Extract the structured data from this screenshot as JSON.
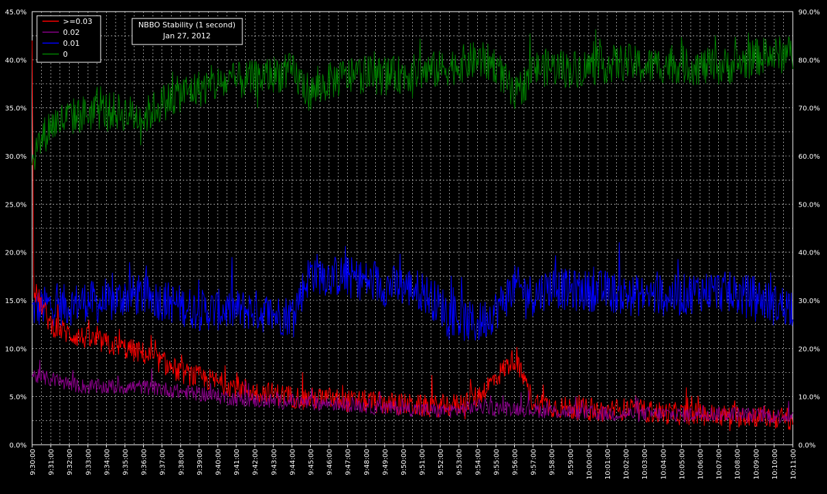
{
  "chart_data": {
    "type": "line",
    "title": "NBBO Stability (1 second)",
    "subtitle": "Jan 27, 2012",
    "xlabel": "",
    "ylabel": "",
    "y_left": {
      "min": 0,
      "max": 45,
      "ticks": [
        "0.0%",
        "5.0%",
        "10.0%",
        "15.0%",
        "20.0%",
        "25.0%",
        "30.0%",
        "35.0%",
        "40.0%",
        "45.0%"
      ]
    },
    "y_right": {
      "min": 0,
      "max": 90,
      "ticks": [
        "0.0%",
        "10.0%",
        "20.0%",
        "30.0%",
        "40.0%",
        "50.0%",
        "60.0%",
        "70.0%",
        "80.0%",
        "90.0%"
      ]
    },
    "x_ticks": [
      "9:30:00",
      "9:31:00",
      "9:32:00",
      "9:33:00",
      "9:34:00",
      "9:35:00",
      "9:36:00",
      "9:37:00",
      "9:38:00",
      "9:39:00",
      "9:40:00",
      "9:41:00",
      "9:42:00",
      "9:43:00",
      "9:44:00",
      "9:45:00",
      "9:46:00",
      "9:47:00",
      "9:48:00",
      "9:49:00",
      "9:50:00",
      "9:51:00",
      "9:52:00",
      "9:53:00",
      "9:54:00",
      "9:55:00",
      "9:56:00",
      "9:57:00",
      "9:58:00",
      "9:59:00",
      "10:00:00",
      "10:01:00",
      "10:02:00",
      "10:03:00",
      "10:04:00",
      "10:05:00",
      "10:06:00",
      "10:07:00",
      "10:08:00",
      "10:09:00",
      "10:10:00",
      "10:11:00"
    ],
    "grid": true,
    "legend_position": "top-left",
    "series": [
      {
        "name": ">=0.03",
        "color": "#ff0000",
        "axis": "left",
        "minute_values": [
          16.5,
          12.5,
          11.5,
          11.0,
          10.5,
          10.0,
          9.5,
          8.5,
          7.5,
          7.0,
          6.5,
          6.0,
          5.5,
          5.3,
          5.0,
          4.8,
          4.8,
          4.5,
          4.5,
          4.3,
          4.2,
          4.0,
          4.0,
          4.2,
          5.0,
          7.0,
          9.0,
          4.5,
          4.0,
          3.8,
          3.6,
          3.5,
          3.7,
          3.5,
          3.3,
          3.2,
          3.2,
          3.0,
          3.0,
          3.0,
          2.8,
          2.7
        ],
        "peak": {
          "time": "9:30:00",
          "value": 42.0
        },
        "noise": 1.2
      },
      {
        "name": "0.02",
        "color": "#8b008b",
        "axis": "left",
        "minute_values": [
          7.2,
          6.8,
          6.3,
          6.0,
          6.0,
          6.0,
          6.0,
          5.8,
          5.5,
          5.3,
          5.0,
          4.8,
          4.6,
          4.5,
          4.5,
          4.3,
          4.3,
          4.2,
          4.0,
          3.8,
          3.8,
          3.6,
          3.5,
          3.6,
          4.0,
          3.8,
          3.8,
          3.6,
          3.5,
          3.4,
          3.3,
          3.2,
          3.2,
          3.2,
          3.2,
          3.1,
          3.2,
          3.2,
          3.2,
          3.0,
          3.0,
          3.0
        ],
        "noise": 0.8
      },
      {
        "name": "0.01",
        "color": "#0000ff",
        "axis": "left",
        "minute_values": [
          14.0,
          14.5,
          14.5,
          15.0,
          14.5,
          15.5,
          15.5,
          15.0,
          14.5,
          14.0,
          14.0,
          14.0,
          14.0,
          13.5,
          13.5,
          18.0,
          17.5,
          17.5,
          17.0,
          16.5,
          16.5,
          16.0,
          14.5,
          13.0,
          12.5,
          14.0,
          16.5,
          15.5,
          16.5,
          16.0,
          16.0,
          16.0,
          15.5,
          15.5,
          15.5,
          15.5,
          16.0,
          16.0,
          15.5,
          15.5,
          14.5,
          14.5
        ],
        "noise": 2.2
      },
      {
        "name": "0",
        "color": "#008000",
        "axis": "right",
        "minute_values": [
          60.0,
          66.5,
          68.0,
          69.0,
          69.5,
          69.0,
          68.0,
          71.0,
          73.0,
          74.0,
          75.0,
          75.5,
          76.0,
          77.0,
          77.5,
          73.0,
          75.5,
          76.5,
          77.0,
          76.5,
          77.0,
          77.5,
          78.0,
          79.0,
          80.0,
          79.0,
          72.0,
          78.0,
          78.5,
          78.0,
          78.5,
          79.0,
          79.5,
          78.5,
          79.0,
          79.0,
          78.5,
          78.5,
          79.0,
          80.5,
          81.0,
          81.0
        ],
        "noise": 4.0
      }
    ],
    "annotation_box": {
      "line1": "NBBO Stability (1 second)",
      "line2": "Jan 27, 2012"
    }
  }
}
